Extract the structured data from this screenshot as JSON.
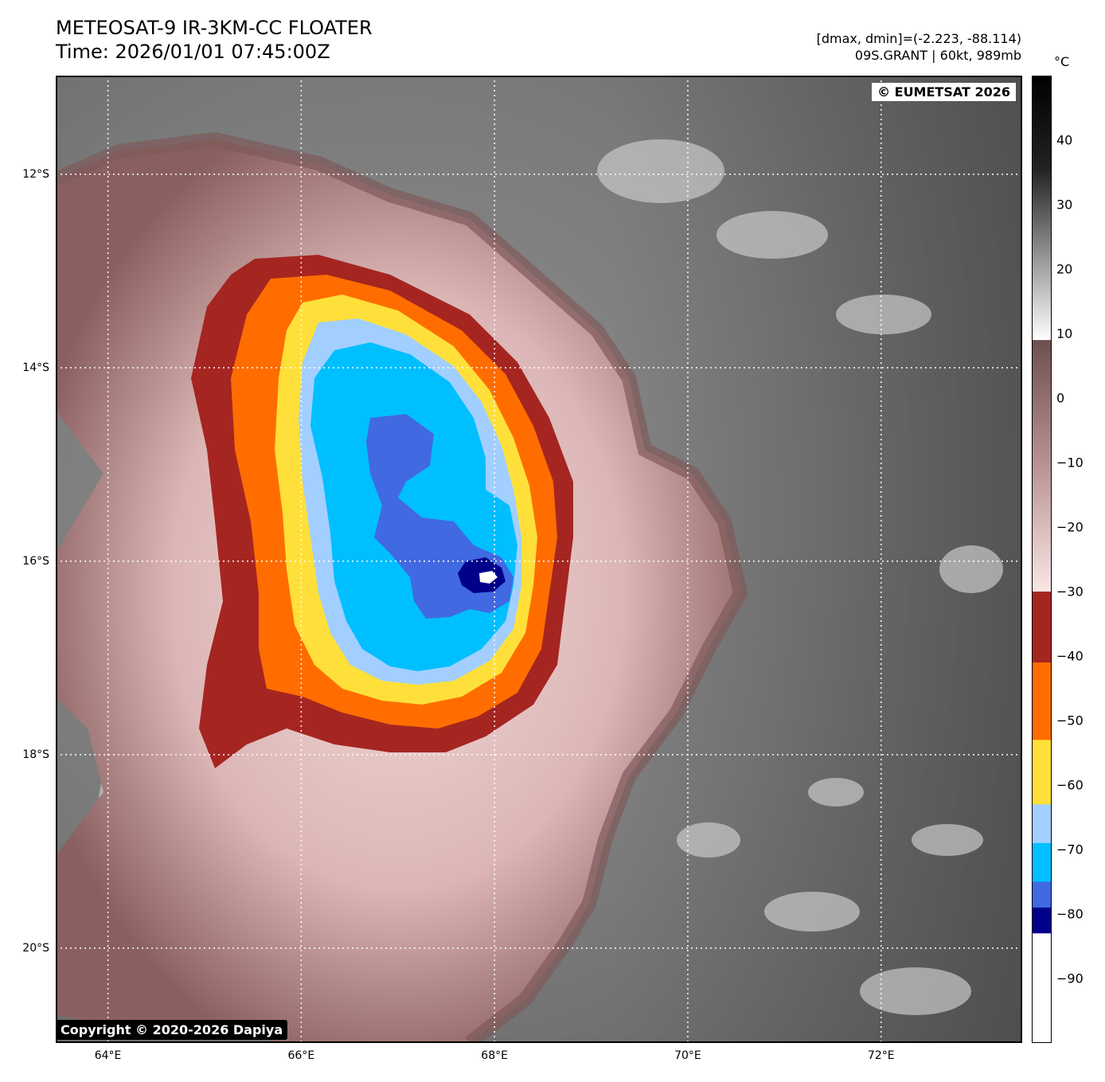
{
  "header": {
    "title": "METEOSAT-9 IR-3KM-CC FLOATER",
    "time": "Time: 2026/01/01 07:45:00Z",
    "dmax_dmin": "[dmax, dmin]=(-2.223, -88.114)",
    "storm": "09S.GRANT | 60kt, 989mb"
  },
  "map": {
    "lat_labels": [
      "12°S",
      "14°S",
      "16°S",
      "18°S",
      "20°S"
    ],
    "lon_labels": [
      "64°E",
      "66°E",
      "68°E",
      "70°E",
      "72°E"
    ],
    "lat_range": [
      -10.98,
      -20.98
    ],
    "lon_range": [
      63.46,
      73.46
    ]
  },
  "colorbar": {
    "unit": "°C",
    "ticks": [
      "40",
      "30",
      "20",
      "10",
      "0",
      "−10",
      "−20",
      "−30",
      "−40",
      "−50",
      "−60",
      "−70",
      "−80",
      "−90"
    ],
    "tick_values": [
      40,
      30,
      20,
      10,
      0,
      -10,
      -20,
      -30,
      -40,
      -50,
      -60,
      -70,
      -80,
      -90
    ],
    "range": [
      -100,
      50
    ],
    "segments": [
      {
        "from": 50,
        "to": 9,
        "color": "gray-ramp"
      },
      {
        "from": 9,
        "to": -30,
        "color": "brown-pink-ramp"
      },
      {
        "from": -30,
        "to": -41,
        "color": "#a52521"
      },
      {
        "from": -41,
        "to": -53,
        "color": "#ff6d00"
      },
      {
        "from": -53,
        "to": -63,
        "color": "#ffe03a"
      },
      {
        "from": -63,
        "to": -69,
        "color": "#a2cfff"
      },
      {
        "from": -69,
        "to": -75,
        "color": "#00bfff"
      },
      {
        "from": -75,
        "to": -79,
        "color": "#4169e1"
      },
      {
        "from": -79,
        "to": -83,
        "color": "#00008b"
      },
      {
        "from": -83,
        "to": -100,
        "color": "#ffffff"
      }
    ]
  },
  "badges": {
    "eumetsat": "© EUMETSAT 2026",
    "copyright": "Copyright © 2020-2026 Dapiya"
  }
}
